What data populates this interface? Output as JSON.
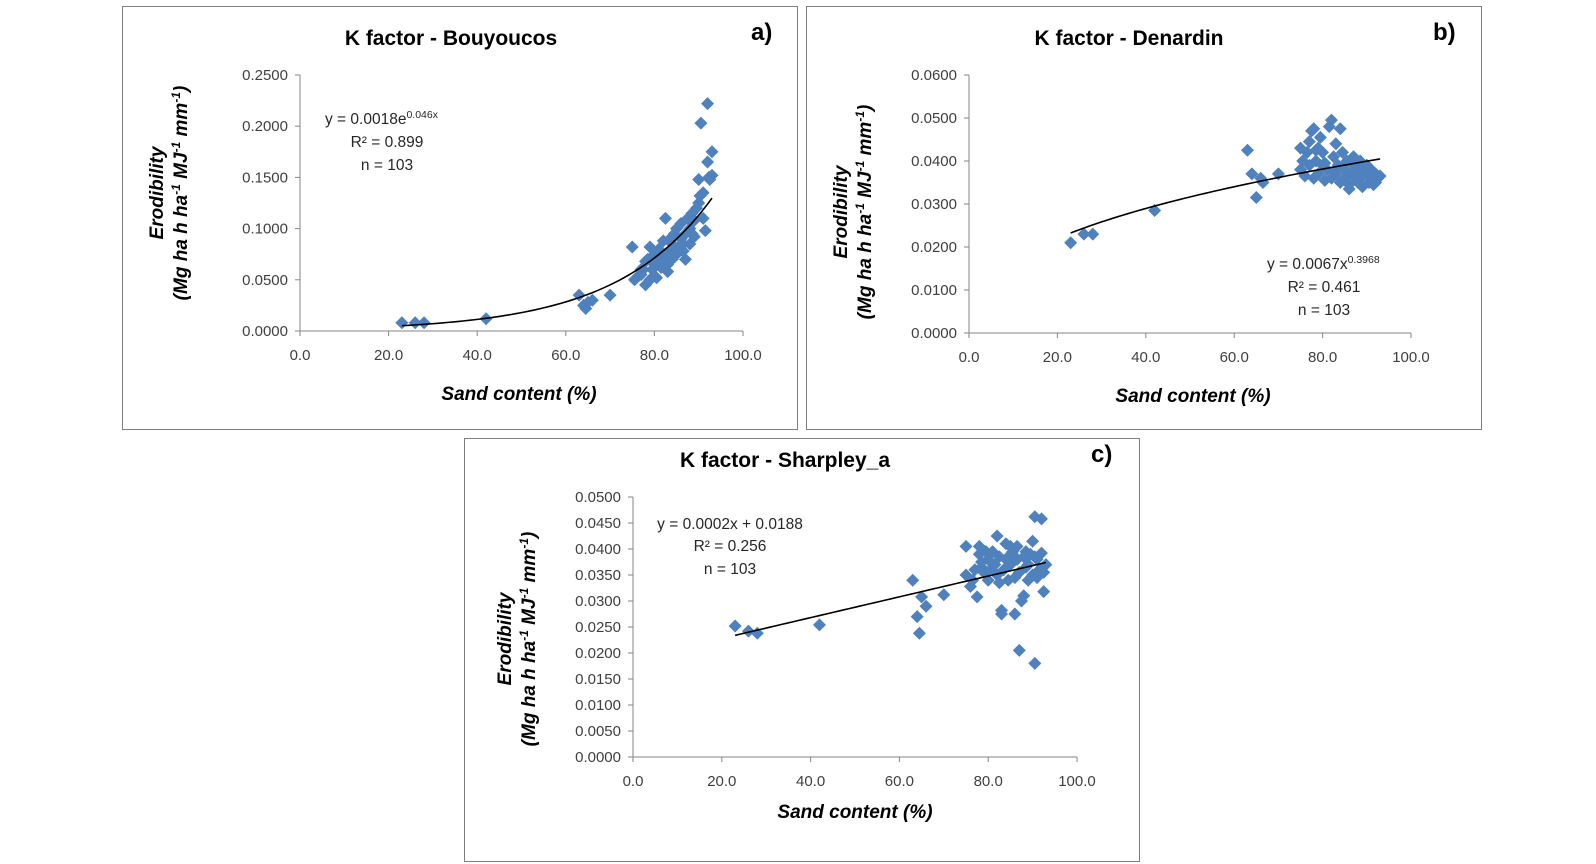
{
  "chart_data": [
    {
      "type": "scatter",
      "panel_label": "a)",
      "title": "K factor - Bouyoucos",
      "xlabel": "Sand content  (%)",
      "ylabel_line1": "Erodibility",
      "ylabel_line2": "(Mg ha h ha-1 MJ-1 mm-1)",
      "xlim": [
        0,
        100
      ],
      "ylim": [
        0,
        0.25
      ],
      "xticks": [
        "0.0",
        "20.0",
        "40.0",
        "60.0",
        "80.0",
        "100.0"
      ],
      "yticks": [
        "0.0000",
        "0.0500",
        "0.1000",
        "0.1500",
        "0.2000",
        "0.2500"
      ],
      "trendline": {
        "type": "exponential",
        "a": 0.0018,
        "b": 0.046,
        "x_range": [
          23,
          93
        ]
      },
      "annotation": {
        "eq_base": "y = 0.0018e",
        "eq_sup": "0.046x",
        "r2": "R² = 0.899",
        "n": "n = 103"
      },
      "color": "#4f81bd",
      "points": [
        [
          23,
          0.008
        ],
        [
          26,
          0.008
        ],
        [
          28,
          0.008
        ],
        [
          42,
          0.012
        ],
        [
          63,
          0.035
        ],
        [
          64,
          0.025
        ],
        [
          64.5,
          0.022
        ],
        [
          65,
          0.028
        ],
        [
          66,
          0.03
        ],
        [
          70,
          0.035
        ],
        [
          75,
          0.082
        ],
        [
          75.5,
          0.05
        ],
        [
          76,
          0.052
        ],
        [
          77,
          0.055
        ],
        [
          77.5,
          0.06
        ],
        [
          78,
          0.045
        ],
        [
          78,
          0.068
        ],
        [
          78.5,
          0.07
        ],
        [
          79,
          0.082
        ],
        [
          79,
          0.05
        ],
        [
          79.5,
          0.06
        ],
        [
          80,
          0.065
        ],
        [
          80,
          0.075
        ],
        [
          80.5,
          0.052
        ],
        [
          81,
          0.068
        ],
        [
          81,
          0.08
        ],
        [
          81.5,
          0.062
        ],
        [
          82,
          0.072
        ],
        [
          82,
          0.088
        ],
        [
          82.5,
          0.11
        ],
        [
          83,
          0.065
        ],
        [
          83,
          0.058
        ],
        [
          83.5,
          0.078
        ],
        [
          84,
          0.085
        ],
        [
          84,
          0.07
        ],
        [
          84.5,
          0.095
        ],
        [
          85,
          0.1
        ],
        [
          85,
          0.075
        ],
        [
          85.5,
          0.082
        ],
        [
          86,
          0.09
        ],
        [
          86,
          0.105
        ],
        [
          86.5,
          0.078
        ],
        [
          87,
          0.07
        ],
        [
          87,
          0.095
        ],
        [
          87.5,
          0.11
        ],
        [
          88,
          0.085
        ],
        [
          88,
          0.1
        ],
        [
          88.5,
          0.115
        ],
        [
          89,
          0.108
        ],
        [
          89,
          0.092
        ],
        [
          89.5,
          0.12
        ],
        [
          90,
          0.125
        ],
        [
          90,
          0.148
        ],
        [
          90.3,
          0.132
        ],
        [
          90.5,
          0.203
        ],
        [
          91,
          0.135
        ],
        [
          91,
          0.11
        ],
        [
          91.5,
          0.098
        ],
        [
          92,
          0.165
        ],
        [
          92,
          0.222
        ],
        [
          92.3,
          0.15
        ],
        [
          92.5,
          0.148
        ],
        [
          93,
          0.175
        ],
        [
          93,
          0.152
        ],
        [
          80.5,
          0.07
        ],
        [
          83.5,
          0.09
        ],
        [
          86.5,
          0.085
        ],
        [
          88.5,
          0.095
        ],
        [
          77,
          0.06
        ],
        [
          84.5,
          0.075
        ]
      ]
    },
    {
      "type": "scatter",
      "panel_label": "b)",
      "title": "K factor - Denardin",
      "xlabel": "Sand content (%)",
      "ylabel_line1": "Erodibility",
      "ylabel_line2": "(Mg ha h ha-1 MJ-1 mm-1)",
      "xlim": [
        0,
        100
      ],
      "ylim": [
        0,
        0.06
      ],
      "xticks": [
        "0.0",
        "20.0",
        "40.0",
        "60.0",
        "80.0",
        "100.0"
      ],
      "yticks": [
        "0.0000",
        "0.0100",
        "0.0200",
        "0.0300",
        "0.0400",
        "0.0500",
        "0.0600"
      ],
      "trendline": {
        "type": "power",
        "a": 0.0067,
        "b": 0.3968,
        "x_range": [
          23,
          93
        ]
      },
      "annotation": {
        "eq_base": "y = 0.0067x",
        "eq_sup": "0.3968",
        "r2": "R² = 0.461",
        "n": "n = 103"
      },
      "color": "#4f81bd",
      "points": [
        [
          23,
          0.021
        ],
        [
          26,
          0.023
        ],
        [
          28,
          0.023
        ],
        [
          42,
          0.0285
        ],
        [
          63,
          0.0425
        ],
        [
          64,
          0.037
        ],
        [
          65,
          0.0315
        ],
        [
          66,
          0.036
        ],
        [
          66.5,
          0.035
        ],
        [
          70,
          0.037
        ],
        [
          75,
          0.038
        ],
        [
          75,
          0.043
        ],
        [
          75.5,
          0.04
        ],
        [
          76,
          0.0365
        ],
        [
          76.5,
          0.042
        ],
        [
          77,
          0.0445
        ],
        [
          77,
          0.039
        ],
        [
          77.5,
          0.047
        ],
        [
          78,
          0.0475
        ],
        [
          78,
          0.036
        ],
        [
          78.5,
          0.04
        ],
        [
          79,
          0.043
        ],
        [
          79,
          0.037
        ],
        [
          79.5,
          0.0455
        ],
        [
          80,
          0.039
        ],
        [
          80,
          0.042
        ],
        [
          80.5,
          0.0355
        ],
        [
          81,
          0.038
        ],
        [
          81.5,
          0.048
        ],
        [
          82,
          0.036
        ],
        [
          82,
          0.0495
        ],
        [
          82.5,
          0.041
        ],
        [
          83,
          0.044
        ],
        [
          83,
          0.037
        ],
        [
          83.5,
          0.039
        ],
        [
          84,
          0.0475
        ],
        [
          84,
          0.035
        ],
        [
          84.5,
          0.042
        ],
        [
          85,
          0.038
        ],
        [
          85,
          0.036
        ],
        [
          85.5,
          0.04
        ],
        [
          86,
          0.0345
        ],
        [
          86,
          0.0335
        ],
        [
          86.5,
          0.037
        ],
        [
          87,
          0.039
        ],
        [
          87,
          0.041
        ],
        [
          87.5,
          0.036
        ],
        [
          88,
          0.038
        ],
        [
          88,
          0.035
        ],
        [
          88.5,
          0.04
        ],
        [
          89,
          0.0365
        ],
        [
          89,
          0.034
        ],
        [
          89.5,
          0.038
        ],
        [
          90,
          0.037
        ],
        [
          90,
          0.039
        ],
        [
          90.5,
          0.035
        ],
        [
          91,
          0.036
        ],
        [
          91,
          0.038
        ],
        [
          91.5,
          0.0345
        ],
        [
          92,
          0.037
        ],
        [
          92,
          0.035
        ],
        [
          92.5,
          0.036
        ],
        [
          93,
          0.0365
        ],
        [
          86.5,
          0.0405
        ],
        [
          84.5,
          0.0385
        ],
        [
          80.5,
          0.0395
        ],
        [
          78.5,
          0.0425
        ],
        [
          82.5,
          0.0375
        ],
        [
          88.5,
          0.0365
        ],
        [
          90.5,
          0.0375
        ]
      ]
    },
    {
      "type": "scatter",
      "panel_label": "c)",
      "title": "K factor - Sharpley_a",
      "xlabel": "Sand content (%)",
      "ylabel_line1": "Erodibility",
      "ylabel_line2": "(Mg ha h ha-1 MJ-1 mm-1)",
      "xlim": [
        0,
        100
      ],
      "ylim": [
        0,
        0.05
      ],
      "xticks": [
        "0.0",
        "20.0",
        "40.0",
        "60.0",
        "80.0",
        "100.0"
      ],
      "yticks": [
        "0.0000",
        "0.0050",
        "0.0100",
        "0.0150",
        "0.0200",
        "0.0250",
        "0.0300",
        "0.0350",
        "0.0400",
        "0.0450",
        "0.0500"
      ],
      "trendline": {
        "type": "linear",
        "a": 0.0188,
        "b": 0.0002,
        "x_range": [
          23,
          93
        ]
      },
      "annotation": {
        "eq_base": "y = 0.0002x + 0.0188",
        "eq_sup": "",
        "r2": "R² = 0.256",
        "n": "n = 103"
      },
      "color": "#4f81bd",
      "points": [
        [
          23,
          0.0252
        ],
        [
          26,
          0.0242
        ],
        [
          28,
          0.0238
        ],
        [
          42,
          0.0254
        ],
        [
          63,
          0.034
        ],
        [
          64,
          0.027
        ],
        [
          64.5,
          0.0238
        ],
        [
          65,
          0.0308
        ],
        [
          66,
          0.029
        ],
        [
          70,
          0.0312
        ],
        [
          75,
          0.035
        ],
        [
          75,
          0.0405
        ],
        [
          76,
          0.0328
        ],
        [
          76.5,
          0.034
        ],
        [
          77,
          0.036
        ],
        [
          77.5,
          0.0308
        ],
        [
          78,
          0.039
        ],
        [
          78,
          0.0405
        ],
        [
          78.5,
          0.0365
        ],
        [
          79,
          0.0355
        ],
        [
          79.5,
          0.0395
        ],
        [
          80,
          0.034
        ],
        [
          80,
          0.038
        ],
        [
          80.5,
          0.036
        ],
        [
          81,
          0.0395
        ],
        [
          81.5,
          0.037
        ],
        [
          82,
          0.0425
        ],
        [
          82,
          0.035
        ],
        [
          82.5,
          0.0385
        ],
        [
          83,
          0.0282
        ],
        [
          83,
          0.0275
        ],
        [
          83.5,
          0.036
        ],
        [
          84,
          0.041
        ],
        [
          84,
          0.038
        ],
        [
          84.5,
          0.034
        ],
        [
          85,
          0.0405
        ],
        [
          85,
          0.037
        ],
        [
          85.5,
          0.039
        ],
        [
          86,
          0.0345
        ],
        [
          86,
          0.0275
        ],
        [
          86.5,
          0.038
        ],
        [
          87,
          0.0205
        ],
        [
          87,
          0.0355
        ],
        [
          87.5,
          0.03
        ],
        [
          88,
          0.031
        ],
        [
          88,
          0.0385
        ],
        [
          88.5,
          0.0365
        ],
        [
          89,
          0.037
        ],
        [
          89,
          0.034
        ],
        [
          89.5,
          0.039
        ],
        [
          90,
          0.0415
        ],
        [
          90,
          0.035
        ],
        [
          90.5,
          0.0462
        ],
        [
          90.5,
          0.018
        ],
        [
          91,
          0.038
        ],
        [
          91,
          0.0345
        ],
        [
          91.5,
          0.036
        ],
        [
          92,
          0.0392
        ],
        [
          92,
          0.0458
        ],
        [
          92.5,
          0.0318
        ],
        [
          92.5,
          0.0355
        ],
        [
          93,
          0.037
        ],
        [
          86.5,
          0.0405
        ],
        [
          84.5,
          0.0385
        ],
        [
          80.5,
          0.0375
        ],
        [
          88.5,
          0.0395
        ],
        [
          78.5,
          0.0375
        ],
        [
          82.5,
          0.0335
        ],
        [
          90.5,
          0.0385
        ],
        [
          85.5,
          0.0395
        ]
      ]
    }
  ]
}
